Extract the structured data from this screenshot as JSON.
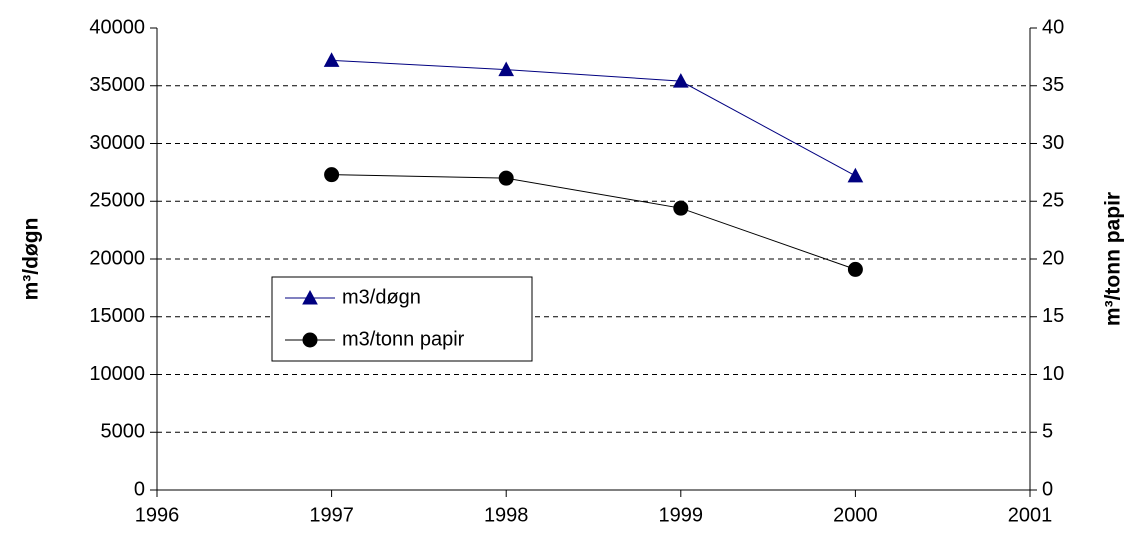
{
  "chart_data": {
    "type": "line",
    "x": [
      1997,
      1998,
      1999,
      2000
    ],
    "xlim": [
      1996,
      2001
    ],
    "xticks": [
      1996,
      1997,
      1998,
      1999,
      2000,
      2001
    ],
    "ylim": [
      0,
      40000
    ],
    "yticks": [
      0,
      5000,
      10000,
      15000,
      20000,
      25000,
      30000,
      35000,
      40000
    ],
    "y2lim": [
      0,
      40
    ],
    "y2ticks": [
      0,
      5,
      10,
      15,
      20,
      25,
      30,
      35,
      40
    ],
    "ylabel": "m³/døgn",
    "y2label": "m³/tonn papir",
    "grid": true,
    "series": [
      {
        "name": "m3/døgn",
        "color": "#000080",
        "marker": "triangle",
        "values": [
          37200,
          36400,
          35400,
          27200
        ]
      },
      {
        "name": "m3/tonn papir",
        "color": "#000000",
        "marker": "circle",
        "axis": "y2",
        "values": [
          27.3,
          27.0,
          24.4,
          19.1
        ]
      }
    ]
  }
}
